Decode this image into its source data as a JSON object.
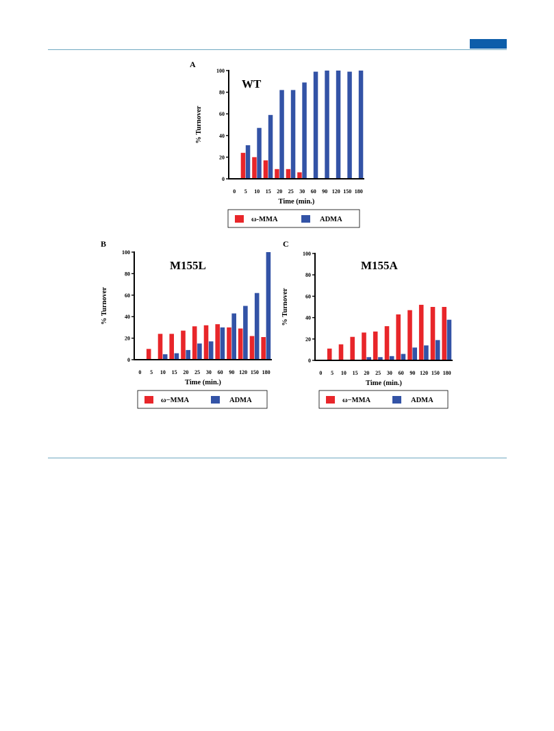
{
  "colors": {
    "omega_mma": "#e8262a",
    "adma": "#3353a6",
    "rule": "#6ea7c0",
    "header_tab": "#0d5eaa"
  },
  "chart_data": [
    {
      "type": "bar",
      "panel_label": "A",
      "title": "WT",
      "xlabel": "Time (min.)",
      "ylabel": "% Turnover",
      "ylim": [
        0,
        100
      ],
      "yticks": [
        "0",
        "20",
        "40",
        "60",
        "80",
        "100"
      ],
      "categories": [
        "0",
        "5",
        "10",
        "15",
        "20",
        "25",
        "30",
        "60",
        "90",
        "120",
        "150",
        "180"
      ],
      "series": [
        {
          "name": "ω-MMA",
          "color": "#e8262a",
          "values": [
            0,
            24,
            20,
            17,
            9,
            9,
            6,
            0,
            0,
            0,
            0,
            0
          ]
        },
        {
          "name": "ADMA",
          "color": "#3353a6",
          "values": [
            0,
            31,
            47,
            59,
            82,
            82,
            89,
            99,
            100,
            100,
            99,
            100
          ]
        }
      ],
      "legend": "bottom"
    },
    {
      "type": "bar",
      "panel_label": "B",
      "title": "M155L",
      "xlabel": "Time (min.)",
      "ylabel": "% Turnover",
      "ylim": [
        0,
        100
      ],
      "yticks": [
        "0",
        "20",
        "40",
        "60",
        "80",
        "100"
      ],
      "categories": [
        "0",
        "5",
        "10",
        "15",
        "20",
        "25",
        "30",
        "60",
        "90",
        "120",
        "150",
        "180"
      ],
      "series": [
        {
          "name": "ω−MMA",
          "color": "#e8262a",
          "values": [
            0,
            10,
            24,
            24,
            27,
            31,
            32,
            33,
            30,
            29,
            22,
            21
          ]
        },
        {
          "name": "ADMA",
          "color": "#3353a6",
          "values": [
            0,
            0,
            5,
            6,
            9,
            15,
            17,
            30,
            43,
            50,
            62,
            100
          ]
        }
      ],
      "legend": "bottom"
    },
    {
      "type": "bar",
      "panel_label": "C",
      "title": "M155A",
      "xlabel": "Time (min.)",
      "ylabel": "% Turnover",
      "ylim": [
        0,
        100
      ],
      "yticks": [
        "0",
        "20",
        "40",
        "60",
        "80",
        "100"
      ],
      "categories": [
        "0",
        "5",
        "10",
        "15",
        "20",
        "25",
        "30",
        "60",
        "90",
        "120",
        "150",
        "180"
      ],
      "series": [
        {
          "name": "ω−MMA",
          "color": "#e8262a",
          "values": [
            0,
            11,
            15,
            22,
            26,
            27,
            32,
            43,
            47,
            52,
            50,
            50
          ]
        },
        {
          "name": "ADMA",
          "color": "#3353a6",
          "values": [
            0,
            0,
            0,
            0,
            3,
            3,
            4,
            6,
            12,
            14,
            19,
            38
          ]
        }
      ],
      "legend": "bottom"
    }
  ]
}
